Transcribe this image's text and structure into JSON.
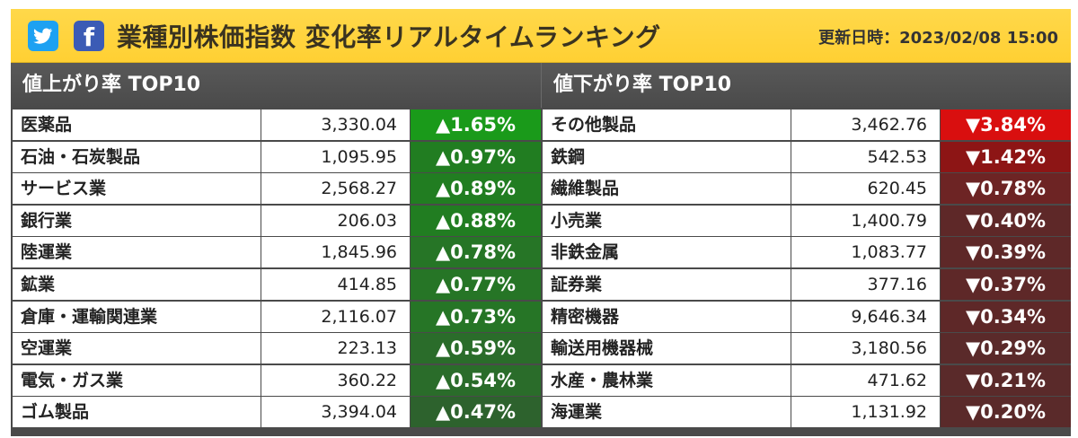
{
  "header": {
    "social": [
      {
        "name": "twitter",
        "icon": "twitter-bird-icon"
      },
      {
        "name": "facebook",
        "icon": "facebook-f-icon",
        "glyph": "f"
      }
    ],
    "title": "業種別株価指数 変化率リアルタイムランキング",
    "updated": "更新日時：2023/02/08 15:00"
  },
  "gainers": {
    "heading": "値上がり率 TOP10",
    "rows": [
      {
        "name": "医薬品",
        "value": "3,330.04",
        "change": "▲1.65%",
        "color": "#1a9a1a"
      },
      {
        "name": "石油・石炭製品",
        "value": "1,095.95",
        "change": "▲0.97%",
        "color": "#217d21"
      },
      {
        "name": "サービス業",
        "value": "2,568.27",
        "change": "▲0.89%",
        "color": "#217d21"
      },
      {
        "name": "銀行業",
        "value": "206.03",
        "change": "▲0.88%",
        "color": "#217d21"
      },
      {
        "name": "陸運業",
        "value": "1,845.96",
        "change": "▲0.78%",
        "color": "#267526"
      },
      {
        "name": "鉱業",
        "value": "414.85",
        "change": "▲0.77%",
        "color": "#267526"
      },
      {
        "name": "倉庫・運輸関連業",
        "value": "2,116.07",
        "change": "▲0.73%",
        "color": "#267526"
      },
      {
        "name": "空運業",
        "value": "223.13",
        "change": "▲0.59%",
        "color": "#2a6c2a"
      },
      {
        "name": "電気・ガス業",
        "value": "360.22",
        "change": "▲0.54%",
        "color": "#2a6c2a"
      },
      {
        "name": "ゴム製品",
        "value": "3,394.04",
        "change": "▲0.47%",
        "color": "#2d622d"
      }
    ]
  },
  "losers": {
    "heading": "値下がり率 TOP10",
    "rows": [
      {
        "name": "その他製品",
        "value": "3,462.76",
        "change": "▼3.84%",
        "color": "#d90f0f"
      },
      {
        "name": "鉄鋼",
        "value": "542.53",
        "change": "▼1.42%",
        "color": "#8d1515"
      },
      {
        "name": "繊維製品",
        "value": "620.45",
        "change": "▼0.78%",
        "color": "#6d2424"
      },
      {
        "name": "小売業",
        "value": "1,400.79",
        "change": "▼0.40%",
        "color": "#5e2828"
      },
      {
        "name": "非鉄金属",
        "value": "1,083.77",
        "change": "▼0.39%",
        "color": "#5e2828"
      },
      {
        "name": "証券業",
        "value": "377.16",
        "change": "▼0.37%",
        "color": "#5e2828"
      },
      {
        "name": "精密機器",
        "value": "9,646.34",
        "change": "▼0.34%",
        "color": "#5e2828"
      },
      {
        "name": "輸送用機器械",
        "value": "3,180.56",
        "change": "▼0.29%",
        "color": "#5a2a2a"
      },
      {
        "name": "水産・農林業",
        "value": "471.62",
        "change": "▼0.21%",
        "color": "#5a2a2a"
      },
      {
        "name": "海運業",
        "value": "1,131.92",
        "change": "▼0.20%",
        "color": "#5a2a2a"
      }
    ]
  }
}
